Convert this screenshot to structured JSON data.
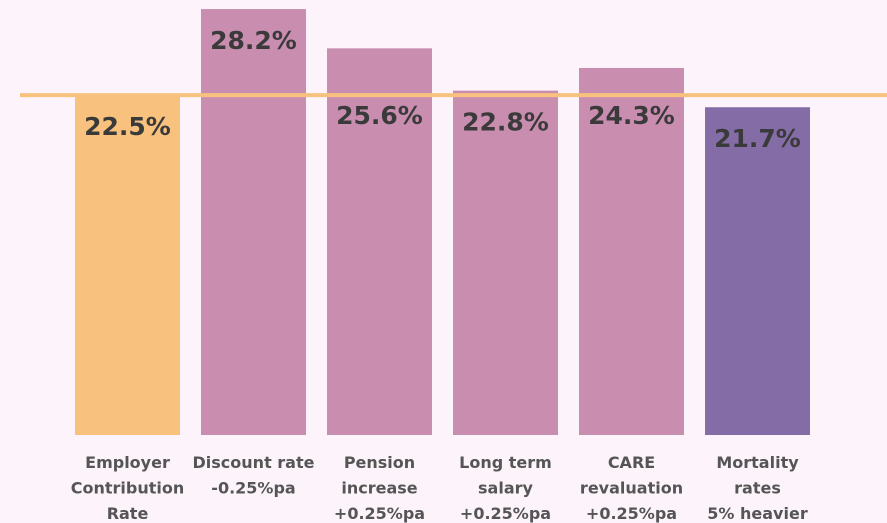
{
  "chart_data": {
    "type": "bar",
    "categories": [
      [
        "Employer",
        "Contribution",
        "Rate"
      ],
      [
        "Discount rate",
        "-0.25%pa"
      ],
      [
        "Pension",
        "increase",
        "+0.25%pa"
      ],
      [
        "Long term",
        "salary",
        "+0.25%pa"
      ],
      [
        "CARE",
        "revaluation",
        "+0.25%pa"
      ],
      [
        "Mortality",
        "rates",
        "5% heavier"
      ]
    ],
    "values": [
      22.5,
      28.2,
      25.6,
      22.8,
      24.3,
      21.7
    ],
    "value_labels": [
      "22.5%",
      "28.2%",
      "25.6%",
      "22.8%",
      "24.3%",
      "21.7%"
    ],
    "colors": [
      "#f8c27e",
      "#c98db0",
      "#c98db0",
      "#c98db0",
      "#c98db0",
      "#846ca7"
    ],
    "reference_line": {
      "value": 22.5,
      "color": "#f8c27e"
    },
    "ylim": [
      0,
      28.8
    ]
  }
}
